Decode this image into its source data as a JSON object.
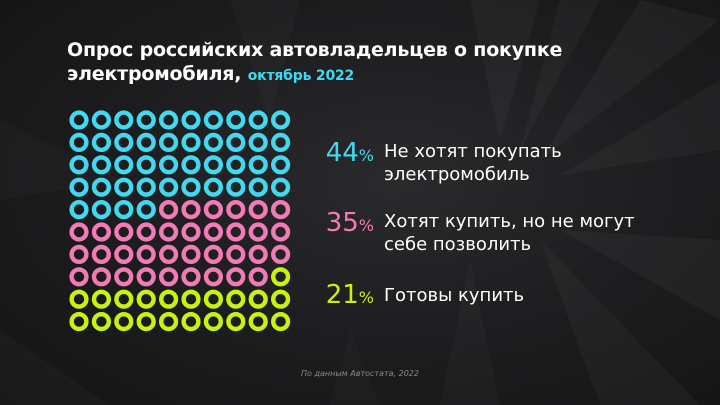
{
  "header": {
    "title_line1": "Опрос российских автовладельцев о покупке",
    "title_line2": "электромобиля,",
    "subtitle": "октябрь 2022"
  },
  "chart_data": {
    "type": "waffle",
    "grid": {
      "rows": 10,
      "cols": 10
    },
    "series": [
      {
        "value": 44,
        "unit": "%",
        "label_lines": [
          "Не хотят покупать",
          "электромобиль"
        ],
        "color": "#41d9f0"
      },
      {
        "value": 35,
        "unit": "%",
        "label_lines": [
          "Хотят купить, но не могут",
          "себе позволить"
        ],
        "color": "#f27bb6"
      },
      {
        "value": 21,
        "unit": "%",
        "label_lines": [
          "Готовы купить"
        ],
        "color": "#c8f20f"
      }
    ]
  },
  "stats": [
    {
      "value": "44",
      "unit": "%"
    },
    {
      "value": "35",
      "unit": "%"
    },
    {
      "value": "21",
      "unit": "%"
    }
  ],
  "footer": {
    "source": "По данным Автостата, 2022"
  },
  "colors": {
    "background": "#1c1c1e",
    "accent_blue": "#41d9f0",
    "accent_pink": "#f27bb6",
    "accent_lime": "#c8f20f"
  }
}
